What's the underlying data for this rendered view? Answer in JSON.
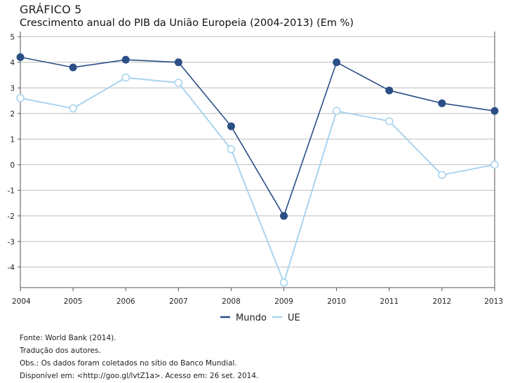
{
  "figure": {
    "kicker": "GRÁFICO 5",
    "title": "Crescimento anual do PIB da União Europeia (2004-2013) (Em %)"
  },
  "chart_data": {
    "type": "line",
    "title": "Crescimento anual do PIB da União Europeia (2004-2013) (Em %)",
    "xlabel": "",
    "ylabel": "",
    "categories": [
      "2004",
      "2005",
      "2006",
      "2007",
      "2008",
      "2009",
      "2010",
      "2011",
      "2012",
      "2013"
    ],
    "ylim": [
      -4.8,
      5.2
    ],
    "yticks": [
      5,
      4,
      3,
      2,
      1,
      0,
      -1,
      -2,
      -3,
      -4
    ],
    "grid": "horizontal",
    "legend_position": "bottom-center",
    "series": [
      {
        "name": "Mundo",
        "color": "#2b4e86",
        "marker": "filled-circle",
        "values": [
          4.2,
          3.8,
          4.1,
          4.0,
          1.5,
          -2.0,
          4.0,
          2.9,
          2.4,
          2.1
        ]
      },
      {
        "name": "UE",
        "color": "#a9d4ee",
        "marker": "hollow-circle",
        "values": [
          2.6,
          2.2,
          3.4,
          3.2,
          0.6,
          -4.6,
          2.1,
          1.7,
          -0.4,
          0.0
        ]
      }
    ]
  },
  "notes": {
    "source": "Fonte: World Bank (2014).",
    "translation": "Tradução dos autores.",
    "obs": "Obs.: Os dados foram coletados no sítio do Banco Mundial.",
    "available": "Disponível em: <http://goo.gl/lvtZ1a>. Acesso em: 26 set. 2014."
  }
}
